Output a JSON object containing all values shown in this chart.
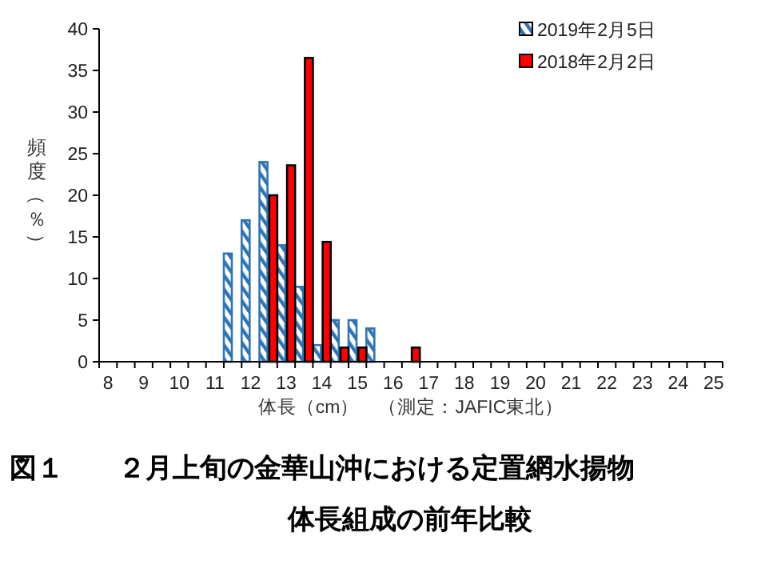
{
  "chart_data": {
    "type": "bar",
    "title": "図１　　２月上旬の金華山沖における定置網水揚物体長組成の前年比較",
    "xlabel": "体長（cm）　（測定：JAFIC東北）",
    "ylabel": "頻度（％）",
    "categories": [
      "8",
      null,
      "9",
      null,
      "10",
      null,
      "11",
      null,
      "12",
      null,
      "13",
      null,
      "14",
      null,
      "15",
      null,
      "16",
      null,
      "17",
      null,
      "18",
      null,
      "19",
      null,
      "20",
      null,
      "21",
      null,
      "22",
      null,
      "23",
      null,
      "24",
      null,
      "25"
    ],
    "series": [
      {
        "name": "2019年2月5日",
        "color": "#2e75b6",
        "values": [
          0,
          0,
          0,
          0,
          0,
          0,
          0,
          13,
          17,
          24,
          14,
          9,
          2,
          5,
          5,
          4,
          0,
          0,
          0,
          0,
          0,
          0,
          0,
          0,
          0,
          0,
          0,
          0,
          0,
          0,
          0,
          0,
          0,
          0,
          0
        ]
      },
      {
        "name": "2018年2月2日",
        "color": "#ff0000",
        "values": [
          0,
          0,
          0,
          0,
          0,
          0,
          0,
          0,
          0,
          20,
          23.6,
          36.5,
          14.4,
          1.7,
          1.7,
          0,
          0,
          1.7,
          0,
          0,
          0,
          0,
          0,
          0,
          0,
          0,
          0,
          0,
          0,
          0,
          0,
          0,
          0,
          0,
          0
        ]
      }
    ],
    "ylim": [
      0,
      40
    ],
    "yticks": [
      0,
      5,
      10,
      15,
      20,
      25,
      30,
      35,
      40
    ],
    "legend": "top right",
    "grid": false
  }
}
